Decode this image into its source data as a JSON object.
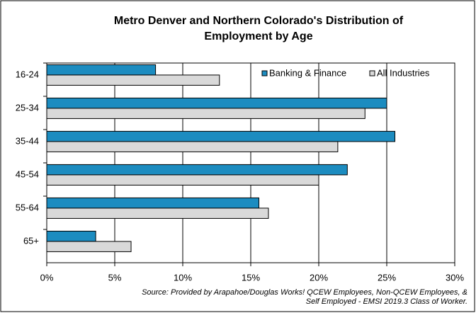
{
  "chart_data": {
    "type": "bar",
    "orientation": "horizontal",
    "title": [
      "Metro Denver and Northern Colorado's Distribution of",
      "Employment  by Age"
    ],
    "categories": [
      "16-24",
      "25-34",
      "35-44",
      "45-54",
      "55-64",
      "65+"
    ],
    "series": [
      {
        "name": "Banking & Finance",
        "color": "#1c8cc0",
        "values": [
          8.0,
          25.0,
          25.6,
          22.1,
          15.6,
          3.6
        ]
      },
      {
        "name": "All Industries",
        "color": "#d9d9d9",
        "values": [
          12.7,
          23.4,
          21.4,
          20.0,
          16.3,
          6.2
        ]
      }
    ],
    "xlim": [
      0,
      30
    ],
    "xticks": [
      {
        "value": 0,
        "label": "0%"
      },
      {
        "value": 5,
        "label": "5%"
      },
      {
        "value": 10,
        "label": "10%"
      },
      {
        "value": 15,
        "label": "15%"
      },
      {
        "value": 20,
        "label": "20%"
      },
      {
        "value": 25,
        "label": "25%"
      },
      {
        "value": 30,
        "label": "30%"
      }
    ],
    "grid": true,
    "legend": "top-right",
    "source": [
      "Source: Provided by Arapahoe/Douglas Works! QCEW Employees, Non-QCEW Employees, &",
      "Self Employed - EMSI 2019.3 Class of Worker."
    ]
  }
}
